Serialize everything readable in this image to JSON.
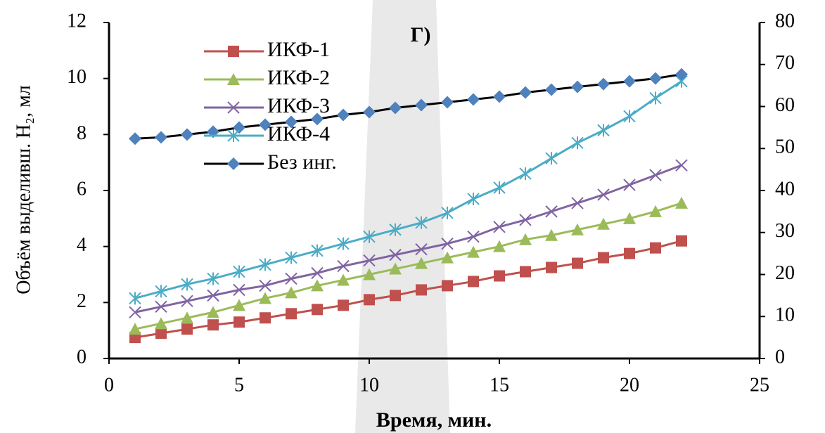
{
  "chart_data": {
    "type": "line",
    "annotation": "Г)",
    "xlabel": "Время, мин.",
    "ylabel": "Объём выделивш. H₂, мл",
    "x": [
      1,
      2,
      3,
      4,
      5,
      6,
      7,
      8,
      9,
      10,
      11,
      12,
      13,
      14,
      15,
      16,
      17,
      18,
      19,
      20,
      21,
      22
    ],
    "xlim": [
      0,
      25
    ],
    "xticks": [
      0,
      5,
      10,
      15,
      20,
      25
    ],
    "ylim": [
      0,
      12
    ],
    "yticks": [
      0,
      2,
      4,
      6,
      8,
      10,
      12
    ],
    "y2lim": [
      0,
      80
    ],
    "y2ticks": [
      0,
      10,
      20,
      30,
      40,
      50,
      60,
      70,
      80
    ],
    "legend": "upper left",
    "series": [
      {
        "name": "ИКФ-1",
        "color": "#c0504d",
        "marker": "square",
        "values": [
          0.75,
          0.9,
          1.05,
          1.2,
          1.3,
          1.45,
          1.6,
          1.75,
          1.9,
          2.1,
          2.25,
          2.45,
          2.6,
          2.75,
          2.95,
          3.1,
          3.25,
          3.4,
          3.6,
          3.75,
          3.95,
          4.2
        ]
      },
      {
        "name": "ИКФ-2",
        "color": "#9bbb59",
        "marker": "triangle",
        "values": [
          1.05,
          1.25,
          1.45,
          1.65,
          1.9,
          2.15,
          2.35,
          2.6,
          2.8,
          3.0,
          3.2,
          3.4,
          3.6,
          3.8,
          4.0,
          4.25,
          4.4,
          4.6,
          4.8,
          5.0,
          5.25,
          5.55
        ]
      },
      {
        "name": "ИКФ-3",
        "color": "#8064a2",
        "marker": "x",
        "values": [
          1.65,
          1.85,
          2.05,
          2.25,
          2.45,
          2.6,
          2.85,
          3.05,
          3.3,
          3.5,
          3.7,
          3.9,
          4.1,
          4.35,
          4.7,
          4.95,
          5.25,
          5.55,
          5.85,
          6.2,
          6.55,
          6.9
        ]
      },
      {
        "name": "ИКФ-4",
        "color": "#4bacc6",
        "marker": "asterisk",
        "values": [
          2.15,
          2.4,
          2.65,
          2.85,
          3.1,
          3.35,
          3.6,
          3.85,
          4.1,
          4.35,
          4.6,
          4.85,
          5.2,
          5.7,
          6.1,
          6.6,
          7.15,
          7.7,
          8.15,
          8.65,
          9.3,
          9.9
        ]
      },
      {
        "name": "Без инг.",
        "color": "#4f81bd",
        "line_color": "#000000",
        "marker": "diamond",
        "values": [
          7.85,
          7.9,
          8.0,
          8.1,
          8.25,
          8.35,
          8.45,
          8.55,
          8.7,
          8.8,
          8.95,
          9.05,
          9.15,
          9.25,
          9.35,
          9.5,
          9.6,
          9.7,
          9.8,
          9.9,
          10.0,
          10.15
        ]
      }
    ]
  }
}
